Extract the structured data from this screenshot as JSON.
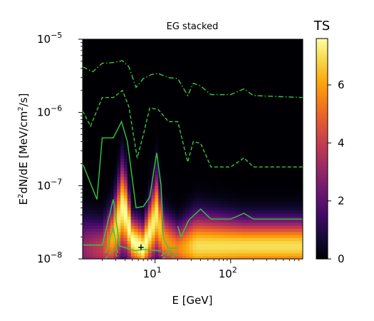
{
  "chart_data": {
    "type": "heatmap",
    "title": "EG stacked",
    "xlabel": "E [GeV]",
    "ylabel_parts": {
      "a": "E",
      "b": "2",
      "c": "dN/dE [MeV/cm",
      "d": "2",
      "e": "/s]"
    },
    "x_scale": "log",
    "y_scale": "log",
    "xlim": [
      1.1,
      900
    ],
    "ylim": [
      1e-08,
      1e-05
    ],
    "x_ticks": [
      {
        "value": 10,
        "base": "10",
        "exp": "1"
      },
      {
        "value": 100,
        "base": "10",
        "exp": "2"
      }
    ],
    "y_ticks": [
      {
        "value": 1e-08,
        "base": "10",
        "exp": "−8"
      },
      {
        "value": 1e-07,
        "base": "10",
        "exp": "−7"
      },
      {
        "value": 1e-06,
        "base": "10",
        "exp": "−6"
      },
      {
        "value": 1e-05,
        "base": "10",
        "exp": "−5"
      }
    ],
    "colorbar": {
      "label": "TS",
      "range": [
        0,
        7.6
      ],
      "ticks": [
        {
          "value": 0,
          "label": "0"
        },
        {
          "value": 2,
          "label": "2"
        },
        {
          "value": 4,
          "label": "4"
        },
        {
          "value": 6,
          "label": "6"
        }
      ],
      "colormap": "inferno"
    },
    "ts_peak_profile": [
      {
        "E": 1.1,
        "y_peak": 1.4e-08,
        "ts_max": 3.0,
        "width_dex": 0.6
      },
      {
        "E": 2.0,
        "y_peak": 1.4e-08,
        "ts_max": 4.0,
        "width_dex": 0.5
      },
      {
        "E": 2.8,
        "y_peak": 2e-08,
        "ts_max": 6.5,
        "width_dex": 0.6
      },
      {
        "E": 3.8,
        "y_peak": 5.5e-08,
        "ts_max": 7.6,
        "width_dex": 0.85
      },
      {
        "E": 5.0,
        "y_peak": 1.8e-08,
        "ts_max": 7.6,
        "width_dex": 0.45
      },
      {
        "E": 7.0,
        "y_peak": 1.4e-08,
        "ts_max": 7.6,
        "width_dex": 0.45
      },
      {
        "E": 10.5,
        "y_peak": 4e-08,
        "ts_max": 7.2,
        "width_dex": 0.75
      },
      {
        "E": 13.0,
        "y_peak": 1.8e-08,
        "ts_max": 6.0,
        "width_dex": 0.5
      },
      {
        "E": 20.0,
        "y_peak": 1.4e-08,
        "ts_max": 5.5,
        "width_dex": 0.45
      },
      {
        "E": 35.0,
        "y_peak": 1.5e-08,
        "ts_max": 7.0,
        "width_dex": 0.6
      },
      {
        "E": 150.0,
        "y_peak": 1.5e-08,
        "ts_max": 7.0,
        "width_dex": 0.5
      },
      {
        "E": 900.0,
        "y_peak": 1.5e-08,
        "ts_max": 7.0,
        "width_dex": 0.5
      }
    ],
    "contours": [
      {
        "style": "dashdot",
        "color": "#2ecc40",
        "points": [
          [
            1.1,
            4.2e-06
          ],
          [
            1.5,
            3.6e-06
          ],
          [
            2.0,
            4.7e-06
          ],
          [
            2.8,
            4.8e-06
          ],
          [
            3.7,
            5.1e-06
          ],
          [
            4.5,
            4.2e-06
          ],
          [
            5.6,
            2.2e-06
          ],
          [
            7.0,
            2.9e-06
          ],
          [
            9.0,
            3.3e-06
          ],
          [
            11.0,
            3.4e-06
          ],
          [
            15.0,
            3e-06
          ],
          [
            20.0,
            2.9e-06
          ],
          [
            27.0,
            1.7e-06
          ],
          [
            32.0,
            2.5e-06
          ],
          [
            40.0,
            2.3e-06
          ],
          [
            55.0,
            1.75e-06
          ],
          [
            100.0,
            1.75e-06
          ],
          [
            150.0,
            2.1e-06
          ],
          [
            200.0,
            1.7e-06
          ],
          [
            900.0,
            1.6e-06
          ]
        ]
      },
      {
        "style": "dashed",
        "color": "#2ecc40",
        "points": [
          [
            1.1,
            1.05e-06
          ],
          [
            1.4,
            6.5e-07
          ],
          [
            2.0,
            1.6e-06
          ],
          [
            2.8,
            1.6e-06
          ],
          [
            3.7,
            2e-06
          ],
          [
            4.5,
            1.2e-06
          ],
          [
            5.8,
            2.4e-07
          ],
          [
            7.0,
            5e-07
          ],
          [
            8.5,
            1.15e-06
          ],
          [
            11.0,
            1.1e-06
          ],
          [
            15.0,
            7.5e-07
          ],
          [
            20.0,
            7.5e-07
          ],
          [
            27.0,
            2.1e-07
          ],
          [
            32.0,
            4e-07
          ],
          [
            40.0,
            3.8e-07
          ],
          [
            55.0,
            1.8e-07
          ],
          [
            100.0,
            1.8e-07
          ],
          [
            150.0,
            2.4e-07
          ],
          [
            200.0,
            1.8e-07
          ],
          [
            900.0,
            1.8e-07
          ]
        ]
      },
      {
        "style": "solid",
        "color": "#2ecc40",
        "points": [
          [
            1.1,
            2e-07
          ],
          [
            1.7,
            6.5e-08
          ],
          [
            2.0,
            4.5e-07
          ],
          [
            2.8,
            4.5e-07
          ],
          [
            3.6,
            7.5e-07
          ],
          [
            4.3,
            4e-07
          ],
          [
            5.6,
            5e-08
          ],
          [
            7.0,
            5.2e-08
          ],
          [
            8.5,
            7e-08
          ],
          [
            10.5,
            2.8e-07
          ],
          [
            12.0,
            1e-07
          ],
          [
            13.0,
            1.9e-08
          ],
          [
            15.0,
            1.4e-08
          ],
          [
            20.0,
            1.4e-08
          ]
        ]
      },
      {
        "style": "solid",
        "color": "#2ecc40",
        "points": [
          [
            20.0,
            2.8e-08
          ],
          [
            22.0,
            2e-08
          ],
          [
            28.0,
            3.4e-08
          ],
          [
            40.0,
            4.8e-08
          ],
          [
            55.0,
            3.5e-08
          ],
          [
            100.0,
            3.5e-08
          ],
          [
            150.0,
            4.2e-08
          ],
          [
            200.0,
            3.5e-08
          ],
          [
            900.0,
            3.5e-08
          ]
        ]
      },
      {
        "style": "solid",
        "color": "#2ecc40",
        "points": [
          [
            1.1,
            1.55e-08
          ],
          [
            2.0,
            1.55e-08
          ],
          [
            2.8,
            6.5e-08
          ],
          [
            3.4,
            1.5e-08
          ],
          [
            5.5,
            1.3e-08
          ],
          [
            7.0,
            1.35e-08
          ],
          [
            12.0,
            1.28e-08
          ]
        ]
      },
      {
        "style": "solid",
        "color": "#2ecc40",
        "points": [
          [
            2.2,
            1.2e-08
          ],
          [
            2.8,
            2.7e-08
          ],
          [
            3.2,
            1.2e-08
          ]
        ]
      },
      {
        "style": "dashed",
        "color": "#2ecc40",
        "points": [
          [
            2.2,
            1e-08
          ],
          [
            2.8,
            1.35e-08
          ],
          [
            3.3,
            1e-08
          ]
        ]
      },
      {
        "style": "solid",
        "color": "#2ecc40",
        "points": [
          [
            12.0,
            1.1e-08
          ],
          [
            15.0,
            1.3e-08
          ],
          [
            20.0,
            1.1e-08
          ]
        ]
      },
      {
        "style": "dashed",
        "color": "#2ecc40",
        "points": [
          [
            12.5,
            1e-08
          ],
          [
            15.0,
            1.17e-08
          ],
          [
            19.0,
            1e-08
          ]
        ]
      }
    ],
    "marker": {
      "symbol": "+",
      "E": 6.5,
      "y": 1.45e-08
    }
  }
}
